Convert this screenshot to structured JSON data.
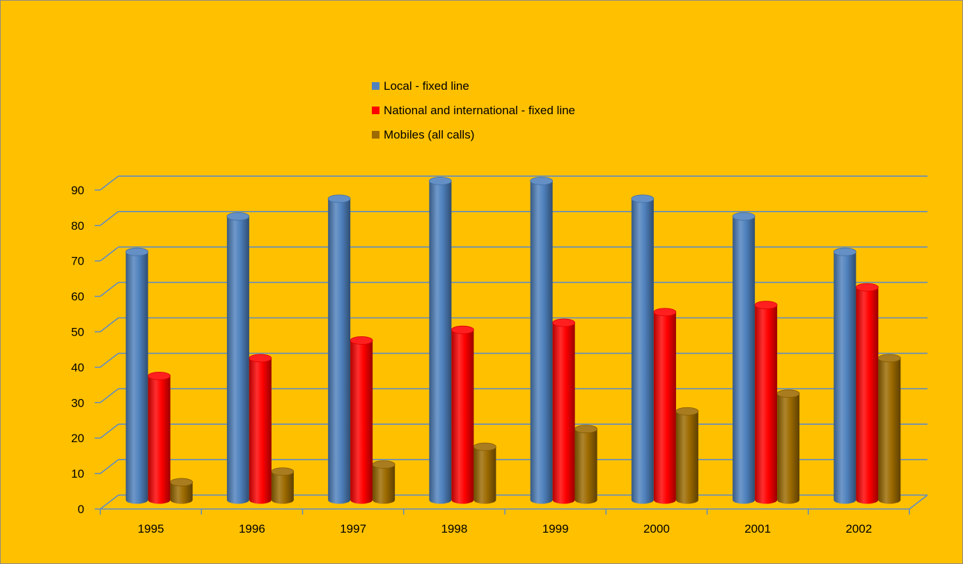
{
  "chart_data": {
    "type": "bar",
    "variant": "3d-cylinder-clustered",
    "title": "",
    "xlabel": "",
    "ylabel": "",
    "categories": [
      "1995",
      "1996",
      "1997",
      "1998",
      "1999",
      "2000",
      "2001",
      "2002"
    ],
    "series": [
      {
        "name": "Local - fixed line",
        "color": "#4F81BD",
        "values": [
          70,
          80,
          85,
          90,
          90,
          85,
          80,
          70
        ]
      },
      {
        "name": "National and international - fixed line",
        "color": "#FF0000",
        "values": [
          35,
          40,
          45,
          48,
          50,
          53,
          55,
          60
        ]
      },
      {
        "name": "Mobiles (all calls)",
        "color": "#9C6A00",
        "values": [
          5,
          8,
          10,
          15,
          20,
          25,
          30,
          40
        ]
      }
    ],
    "ylim": [
      0,
      90
    ],
    "yticks": [
      "0",
      "10",
      "20",
      "30",
      "40",
      "50",
      "60",
      "70",
      "80",
      "90"
    ],
    "grid": true,
    "legend": "top-center",
    "background": "#FFC000",
    "gridline_color": "#5B8BC9"
  }
}
